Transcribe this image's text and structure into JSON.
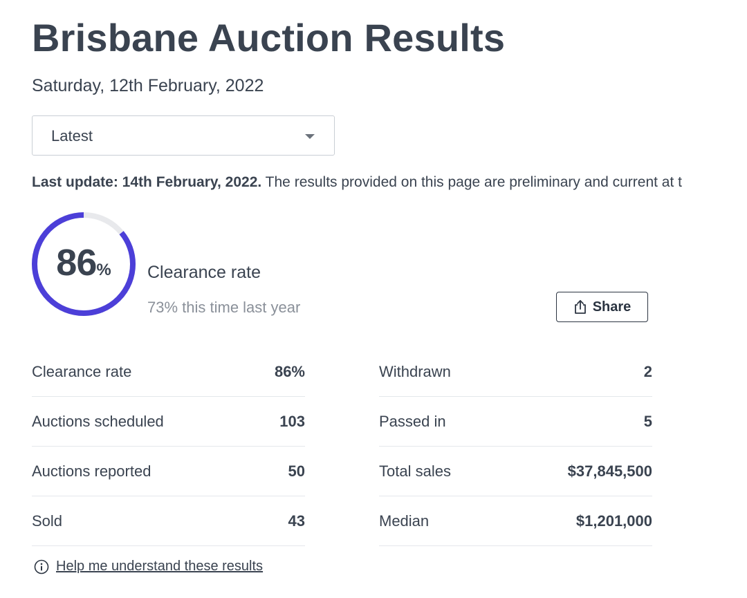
{
  "header": {
    "title": "Brisbane Auction Results",
    "date": "Saturday, 12th February, 2022"
  },
  "filter": {
    "selected": "Latest",
    "icon": "chevron-down-icon"
  },
  "update": {
    "bold_text": "Last update: 14th February, 2022.",
    "text": " The results provided on this page are preliminary and current at t"
  },
  "gauge": {
    "value": "86",
    "unit": "%",
    "fraction": 0.86,
    "color": "#4c3fd8",
    "track_color": "#e8e9ec"
  },
  "clearance": {
    "label": "Clearance rate",
    "comparison": "73% this time last year"
  },
  "share": {
    "label": "Share",
    "icon": "share-icon"
  },
  "stats_left": [
    {
      "label": "Clearance rate",
      "value": "86%"
    },
    {
      "label": "Auctions scheduled",
      "value": "103"
    },
    {
      "label": "Auctions reported",
      "value": "50"
    },
    {
      "label": "Sold",
      "value": "43"
    }
  ],
  "stats_right": [
    {
      "label": "Withdrawn",
      "value": "2"
    },
    {
      "label": "Passed in",
      "value": "5"
    },
    {
      "label": "Total sales",
      "value": "$37,845,500"
    },
    {
      "label": "Median",
      "value": "$1,201,000"
    }
  ],
  "help": {
    "label": "Help me understand these results",
    "icon": "info-icon"
  }
}
